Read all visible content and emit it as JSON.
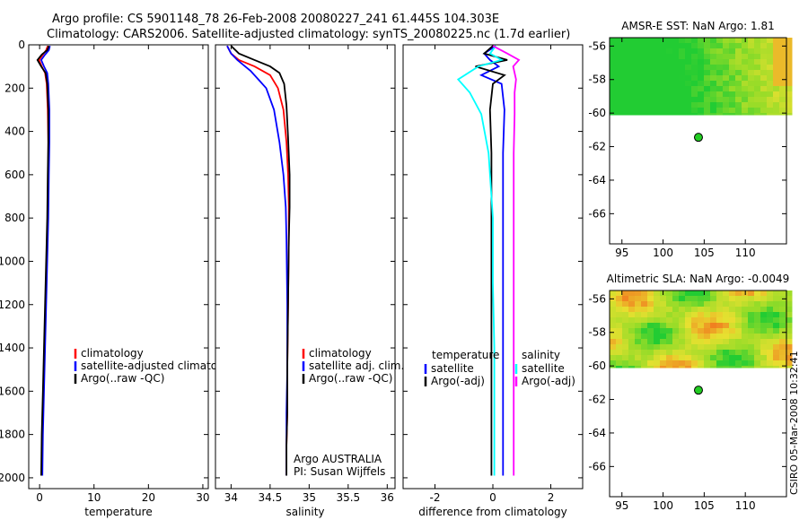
{
  "header": {
    "title_line1": "Argo profile: CS 5901148_78 26-Feb-2008 20080227_241 61.445S 104.303E",
    "title_line2": "Climatology: CARS2006. Satellite-adjusted climatology: synTS_20080225.nc (1.7d earlier)"
  },
  "side_stamp": "CSIRO 05-Mar-2008 10:32:41",
  "colors": {
    "climatology": "#ff0000",
    "satellite": "#0000ff",
    "argo": "#000000",
    "satellite_cyan": "#00ffff",
    "argo_magenta": "#ff00ff",
    "map_green": "#22cc33",
    "map_yellow": "#e8e030",
    "map_orange": "#f08020",
    "float_marker": "#22cc22"
  },
  "chart_data": [
    {
      "type": "line",
      "panel": "temperature",
      "xlabel": "temperature",
      "ylabel": "",
      "xlim": [
        -2,
        31
      ],
      "ylim": [
        2050,
        0
      ],
      "xticks": [
        0,
        10,
        20,
        30
      ],
      "yticks": [
        0,
        200,
        400,
        600,
        800,
        1000,
        1200,
        1400,
        1600,
        1800,
        2000
      ],
      "legend": [
        "climatology",
        "satellite-adjusted climatology",
        "Argo(..raw -QC)"
      ],
      "legend_position": "lower-right",
      "series": [
        {
          "name": "climatology",
          "color": "#ff0000",
          "x": [
            1.5,
            1.2,
            0.6,
            -0.1,
            0.4,
            1.0,
            1.3,
            1.5,
            1.6,
            1.6,
            1.5,
            1.3,
            1.1,
            0.9,
            0.7,
            0.5,
            0.4
          ],
          "y": [
            5,
            25,
            45,
            70,
            100,
            130,
            180,
            300,
            450,
            600,
            800,
            1000,
            1200,
            1400,
            1600,
            1800,
            1990
          ]
        },
        {
          "name": "satellite-adjusted climatology",
          "color": "#0000ff",
          "x": [
            1.9,
            1.7,
            1.0,
            0.3,
            0.8,
            1.4,
            1.6,
            1.8,
            1.8,
            1.7,
            1.6,
            1.4,
            1.2,
            1.0,
            0.8,
            0.6,
            0.5
          ],
          "y": [
            5,
            25,
            45,
            70,
            100,
            130,
            180,
            300,
            450,
            600,
            800,
            1000,
            1200,
            1400,
            1600,
            1800,
            1990
          ]
        },
        {
          "name": "Argo(..raw -QC)",
          "color": "#000000",
          "x": [
            1.7,
            1.4,
            0.4,
            -0.4,
            0.3,
            1.1,
            1.4,
            1.6,
            1.6,
            1.5,
            1.4,
            1.2,
            1.0,
            0.8,
            0.6,
            0.4,
            0.3
          ],
          "y": [
            5,
            25,
            45,
            70,
            100,
            130,
            180,
            300,
            450,
            600,
            800,
            1000,
            1200,
            1400,
            1600,
            1800,
            1990
          ]
        }
      ]
    },
    {
      "type": "line",
      "panel": "salinity",
      "xlabel": "salinity",
      "xlim": [
        33.8,
        36.1
      ],
      "ylim": [
        2050,
        0
      ],
      "xticks": [
        34,
        34.5,
        35,
        35.5,
        36
      ],
      "legend": [
        "climatology",
        "satellite adj. clim.",
        "Argo(..raw -QC)"
      ],
      "legend_position": "lower-right",
      "annotation": [
        "Argo AUSTRALIA",
        "PI: Susan Wijffels"
      ],
      "series": [
        {
          "name": "climatology",
          "color": "#ff0000",
          "x": [
            33.95,
            34.0,
            34.1,
            34.3,
            34.5,
            34.6,
            34.67,
            34.71,
            34.73,
            34.74,
            34.74,
            34.73,
            34.72,
            34.72,
            34.71,
            34.71
          ],
          "y": [
            5,
            40,
            70,
            100,
            140,
            200,
            300,
            450,
            600,
            750,
            900,
            1200,
            1500,
            1700,
            1850,
            1990
          ]
        },
        {
          "name": "satellite adj. clim.",
          "color": "#0000ff",
          "x": [
            33.95,
            34.0,
            34.08,
            34.25,
            34.35,
            34.45,
            34.55,
            34.62,
            34.67,
            34.7,
            34.71,
            34.72,
            34.72,
            34.71,
            34.71,
            34.71
          ],
          "y": [
            5,
            40,
            70,
            120,
            160,
            200,
            300,
            450,
            600,
            750,
            900,
            1200,
            1500,
            1700,
            1850,
            1990
          ]
        },
        {
          "name": "Argo(..raw -QC)",
          "color": "#000000",
          "x": [
            34.0,
            34.1,
            34.3,
            34.5,
            34.62,
            34.68,
            34.71,
            34.73,
            34.75,
            34.75,
            34.74,
            34.73,
            34.72,
            34.72,
            34.71,
            34.71
          ],
          "y": [
            5,
            40,
            70,
            100,
            130,
            180,
            280,
            430,
            600,
            750,
            900,
            1200,
            1500,
            1700,
            1850,
            1990
          ]
        }
      ]
    },
    {
      "type": "line",
      "panel": "difference",
      "xlabel": "difference from climatology",
      "xlim": [
        -3.1,
        3.1
      ],
      "ylim": [
        2050,
        0
      ],
      "xticks": [
        -2,
        0,
        2
      ],
      "legend_headers": [
        "temperature",
        "salinity"
      ],
      "legend_temperature": [
        "satellite",
        "Argo(-adj)"
      ],
      "legend_salinity": [
        "satellite",
        "Argo(-adj)"
      ],
      "legend_position": "lower-right",
      "series": [
        {
          "name": "temperature satellite",
          "color": "#0000ff",
          "x": [
            0.1,
            -0.3,
            -0.1,
            0.2,
            -0.4,
            0.3,
            0.4,
            0.35,
            0.35,
            0.35,
            0.35,
            0.35,
            0.35,
            0.35
          ],
          "y": [
            5,
            40,
            70,
            100,
            140,
            180,
            300,
            500,
            800,
            1100,
            1400,
            1700,
            1850,
            1990
          ]
        },
        {
          "name": "temperature Argo(-adj)",
          "color": "#000000",
          "x": [
            0.0,
            -0.3,
            0.5,
            -0.6,
            0.4,
            0.0,
            -0.1,
            -0.05,
            -0.05,
            -0.05,
            -0.05,
            -0.05,
            -0.05,
            -0.05
          ],
          "y": [
            5,
            40,
            70,
            100,
            140,
            180,
            300,
            500,
            800,
            1100,
            1400,
            1700,
            1850,
            1990
          ]
        },
        {
          "name": "salinity satellite",
          "color": "#00ffff",
          "x": [
            0.1,
            -0.1,
            0.3,
            -0.5,
            -1.2,
            -0.8,
            -0.4,
            -0.15,
            0.0,
            0.0,
            0.05,
            0.05,
            0.05,
            0.05
          ],
          "y": [
            5,
            40,
            70,
            100,
            160,
            220,
            320,
            500,
            800,
            1100,
            1400,
            1700,
            1850,
            1990
          ]
        },
        {
          "name": "salinity Argo(-adj)",
          "color": "#ff00ff",
          "x": [
            0.0,
            0.5,
            0.9,
            0.7,
            0.8,
            0.75,
            0.75,
            0.72,
            0.72,
            0.72,
            0.72,
            0.72,
            0.72,
            0.72
          ],
          "y": [
            5,
            40,
            70,
            100,
            160,
            220,
            320,
            500,
            800,
            1100,
            1400,
            1700,
            1850,
            1990
          ]
        }
      ]
    },
    {
      "type": "heatmap",
      "panel": "sst-map",
      "title": "AMSR-E SST: NaN Argo: 1.81",
      "xlim": [
        93.5,
        115
      ],
      "ylim": [
        -67.8,
        -55.5
      ],
      "xticks": [
        95,
        100,
        105,
        110
      ],
      "yticks": [
        -56,
        -58,
        -60,
        -62,
        -64,
        -66
      ],
      "data_extent_lat": [
        -60.1,
        -55.5
      ],
      "float_position": {
        "lon": 104.303,
        "lat": -61.445
      }
    },
    {
      "type": "heatmap",
      "panel": "sla-map",
      "title": "Altimetric SLA: NaN Argo: -0.0049",
      "xlim": [
        93.5,
        115
      ],
      "ylim": [
        -67.8,
        -55.5
      ],
      "xticks": [
        95,
        100,
        105,
        110
      ],
      "yticks": [
        -56,
        -58,
        -60,
        -62,
        -64,
        -66
      ],
      "data_extent_lat": [
        -60.1,
        -55.5
      ],
      "float_position": {
        "lon": 104.303,
        "lat": -61.445
      }
    }
  ]
}
